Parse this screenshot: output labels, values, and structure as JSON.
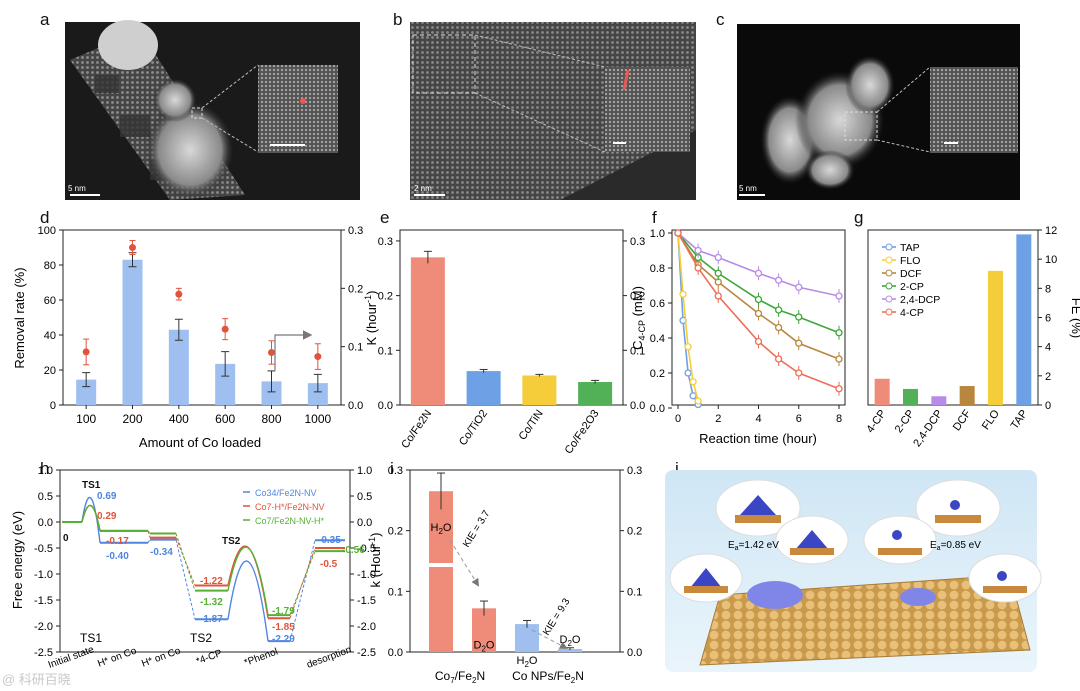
{
  "panel_letters": [
    "a",
    "b",
    "c",
    "d",
    "e",
    "f",
    "g",
    "h",
    "i",
    "j"
  ],
  "micrographs": {
    "a": {
      "scale_label": "5 nm"
    },
    "b": {
      "scale_label": "2 nm"
    },
    "c": {
      "scale_label": "5 nm"
    }
  },
  "chart_data": [
    {
      "panel": "d",
      "type": "bar",
      "categories": [
        "100",
        "200",
        "400",
        "600",
        "800",
        "1000"
      ],
      "values": [
        14.5,
        83,
        43,
        23.5,
        13.5,
        12.5
      ],
      "errors": [
        4,
        4,
        6,
        7,
        6,
        5
      ],
      "secondary_points": [
        0.091,
        0.27,
        0.19,
        0.13,
        0.09,
        0.083
      ],
      "secondary_errors": [
        0.022,
        0.012,
        0.01,
        0.018,
        0.02,
        0.022
      ],
      "xlabel": "Amount of Co loaded",
      "ylabel": "Removal rate (%)",
      "ylim": [
        0,
        100
      ],
      "y2lim": [
        0,
        0.3
      ],
      "yticks": [
        "0",
        "20",
        "40",
        "60",
        "80",
        "100"
      ],
      "y2ticks": [
        "0.0",
        "0.1",
        "0.2",
        "0.3"
      ]
    },
    {
      "panel": "e",
      "type": "bar",
      "categories": [
        "Co/Fe2N",
        "Co/TiO2",
        "Co/TiN",
        "Co/Fe2O3"
      ],
      "values": [
        0.27,
        0.062,
        0.054,
        0.042
      ],
      "errors": [
        0.011,
        0.003,
        0.002,
        0.003
      ],
      "colors": [
        "#ee8c79",
        "#6ea0e6",
        "#f5cd3a",
        "#52b057"
      ],
      "ylabel": "K (hour-1)",
      "ylim": [
        0,
        0.32
      ],
      "yticks": [
        "0.0",
        "0.1",
        "0.2",
        "0.3"
      ]
    },
    {
      "panel": "f",
      "type": "line",
      "xlabel": "Reaction time (hour)",
      "ylabel": "C4-CP (mM)",
      "xlim": [
        0,
        8
      ],
      "ylim": [
        0,
        1.0
      ],
      "xticks": [
        "0",
        "2",
        "4",
        "6",
        "8"
      ],
      "yticks": [
        "0.0",
        "0.2",
        "0.4",
        "0.6",
        "0.8",
        "1.0"
      ],
      "series": [
        {
          "name": "TAP",
          "color": "#6ea0e6",
          "x": [
            0,
            0.25,
            0.5,
            0.75,
            1
          ],
          "y": [
            1.0,
            0.5,
            0.2,
            0.07,
            0.02
          ]
        },
        {
          "name": "FLO",
          "color": "#f5cd3a",
          "x": [
            0,
            0.25,
            0.5,
            0.75,
            1
          ],
          "y": [
            1.0,
            0.65,
            0.35,
            0.15,
            0.04
          ]
        },
        {
          "name": "DCF",
          "color": "#b8873d",
          "x": [
            0,
            1,
            2,
            4,
            5,
            6,
            8
          ],
          "y": [
            1.0,
            0.82,
            0.72,
            0.54,
            0.46,
            0.37,
            0.28
          ]
        },
        {
          "name": "2-CP",
          "color": "#3fa63a",
          "x": [
            0,
            1,
            2,
            4,
            5,
            6,
            8
          ],
          "y": [
            1.0,
            0.86,
            0.77,
            0.62,
            0.56,
            0.52,
            0.43
          ]
        },
        {
          "name": "2,4-DCP",
          "color": "#b88ce6",
          "x": [
            0,
            1,
            2,
            4,
            5,
            6,
            8
          ],
          "y": [
            1.0,
            0.9,
            0.86,
            0.77,
            0.73,
            0.69,
            0.64
          ]
        },
        {
          "name": "4-CP",
          "color": "#ee6e57",
          "x": [
            0,
            1,
            2,
            4,
            5,
            6,
            8
          ],
          "y": [
            1.0,
            0.8,
            0.64,
            0.38,
            0.28,
            0.2,
            0.11
          ]
        }
      ]
    },
    {
      "panel": "g",
      "type": "bar",
      "categories": [
        "4-CP",
        "2-CP",
        "2,4-DCP",
        "DCF",
        "FLO",
        "TAP"
      ],
      "values": [
        1.8,
        1.1,
        0.6,
        1.3,
        9.2,
        11.7
      ],
      "colors": [
        "#ee8c79",
        "#52b057",
        "#b88ce6",
        "#b8873d",
        "#f5cd3a",
        "#6ea0e6"
      ],
      "ylabel": "FE (%)",
      "ylim": [
        0,
        12
      ],
      "yticks": [
        "0",
        "2",
        "4",
        "6",
        "8",
        "10",
        "12"
      ]
    },
    {
      "panel": "h",
      "type": "line",
      "ylabel": "Free energy (eV)",
      "ylim": [
        -2.5,
        1.0
      ],
      "yticks": [
        "1.0",
        "0.5",
        "0.0",
        "-0.5",
        "-1.0",
        "-1.5",
        "-2.0",
        "-2.5"
      ],
      "y2ticks": [
        "1.0",
        "0.5",
        "0.0",
        "-0.5",
        "-1.0",
        "-1.5",
        "-2.0",
        "-2.5"
      ],
      "categories": [
        "Initial state",
        "H* on Co",
        "H* on Co",
        "*4-CP",
        "*Phenol",
        "desorption"
      ],
      "series": [
        {
          "name": "Co34/Fe2N-NV",
          "color": "#4f86e0",
          "values": [
            0,
            -0.4,
            -0.34,
            -1.87,
            -2.29,
            -0.35
          ]
        },
        {
          "name": "Co7-H*/Fe2N-NV",
          "color": "#e2533b",
          "values": [
            0,
            -0.17,
            -0.3,
            -1.22,
            -1.85,
            -0.5
          ]
        },
        {
          "name": "Co7/Fe2N-NV-H*",
          "color": "#55b033",
          "values": [
            0,
            -0.17,
            -0.22,
            -1.32,
            -1.79,
            -0.56
          ]
        }
      ],
      "transition_states": [
        {
          "label": "TS1",
          "values": [
            0.69,
            0.29
          ]
        },
        {
          "label": "TS2",
          "value": -0.4
        }
      ],
      "annotations": [
        "TS1",
        "TS2",
        "0",
        "0.69",
        "0.29",
        "-0.17",
        "-0.40",
        "-0.34",
        "-1.22",
        "-1.32",
        "-1.87",
        "-1.79",
        "-1.85",
        "-2.29",
        "-0.35",
        "-0.5",
        "-0.56"
      ]
    },
    {
      "panel": "i",
      "type": "bar",
      "categories": [
        "Co7/Fe2N",
        "Co NPs/Fe2N"
      ],
      "series": [
        {
          "name": "H2O",
          "values": [
            0.265,
            0.046
          ]
        },
        {
          "name": "D2O",
          "values": [
            0.072,
            0.005
          ]
        }
      ],
      "errors": [
        0.03,
        0.012,
        0.006,
        0.002
      ],
      "kie": [
        "KIE = 3.7",
        "KIE = 9.3"
      ],
      "ylabel": "k (Hour-1)",
      "ylim": [
        0,
        0.3
      ],
      "yticks": [
        "0.0",
        "0.1",
        "0.2",
        "0.3"
      ]
    }
  ],
  "legends": {
    "h": [
      "Co34/Fe2N-NV",
      "Co7-H*/Fe2N-NV",
      "Co7/Fe2N-NV-H*"
    ]
  },
  "labels": {
    "d_x": "Amount of Co loaded",
    "d_y": "Removal rate (%)",
    "e_y": "K (hour",
    "e_y_sup": "-1",
    "e_y_end": ")",
    "f_x": "Reaction time (hour)",
    "f_y_main": "C",
    "f_y_sub": "4-CP",
    "f_y_end": " (mM)",
    "g_y": "FE (%)",
    "h_y": "Free energy (eV)",
    "i_y": "k (Hour",
    "i_y_sup": "-1",
    "i_y_end": ")",
    "h2o": "H",
    "d2o": "D",
    "o": "O",
    "two": "2",
    "kie1": "KIE = 3.7",
    "kie2": "KIE = 9.3",
    "ts1": "TS1",
    "ts2": "TS2",
    "i_cat1_a": "Co",
    "i_cat1_sub": "7",
    "i_cat1_b": "/Fe",
    "i_cat1_sub2": "2",
    "i_cat1_c": "N",
    "i_cat2": "Co NPs/Fe",
    "i_cat2_sub": "2",
    "i_cat2_c": "N",
    "j_ea1": "E",
    "j_ea_sub": "a",
    "j_ea1_val": "=1.42 eV",
    "j_ea2_val": "=0.85 eV"
  },
  "watermark": "@ 科研百晓"
}
